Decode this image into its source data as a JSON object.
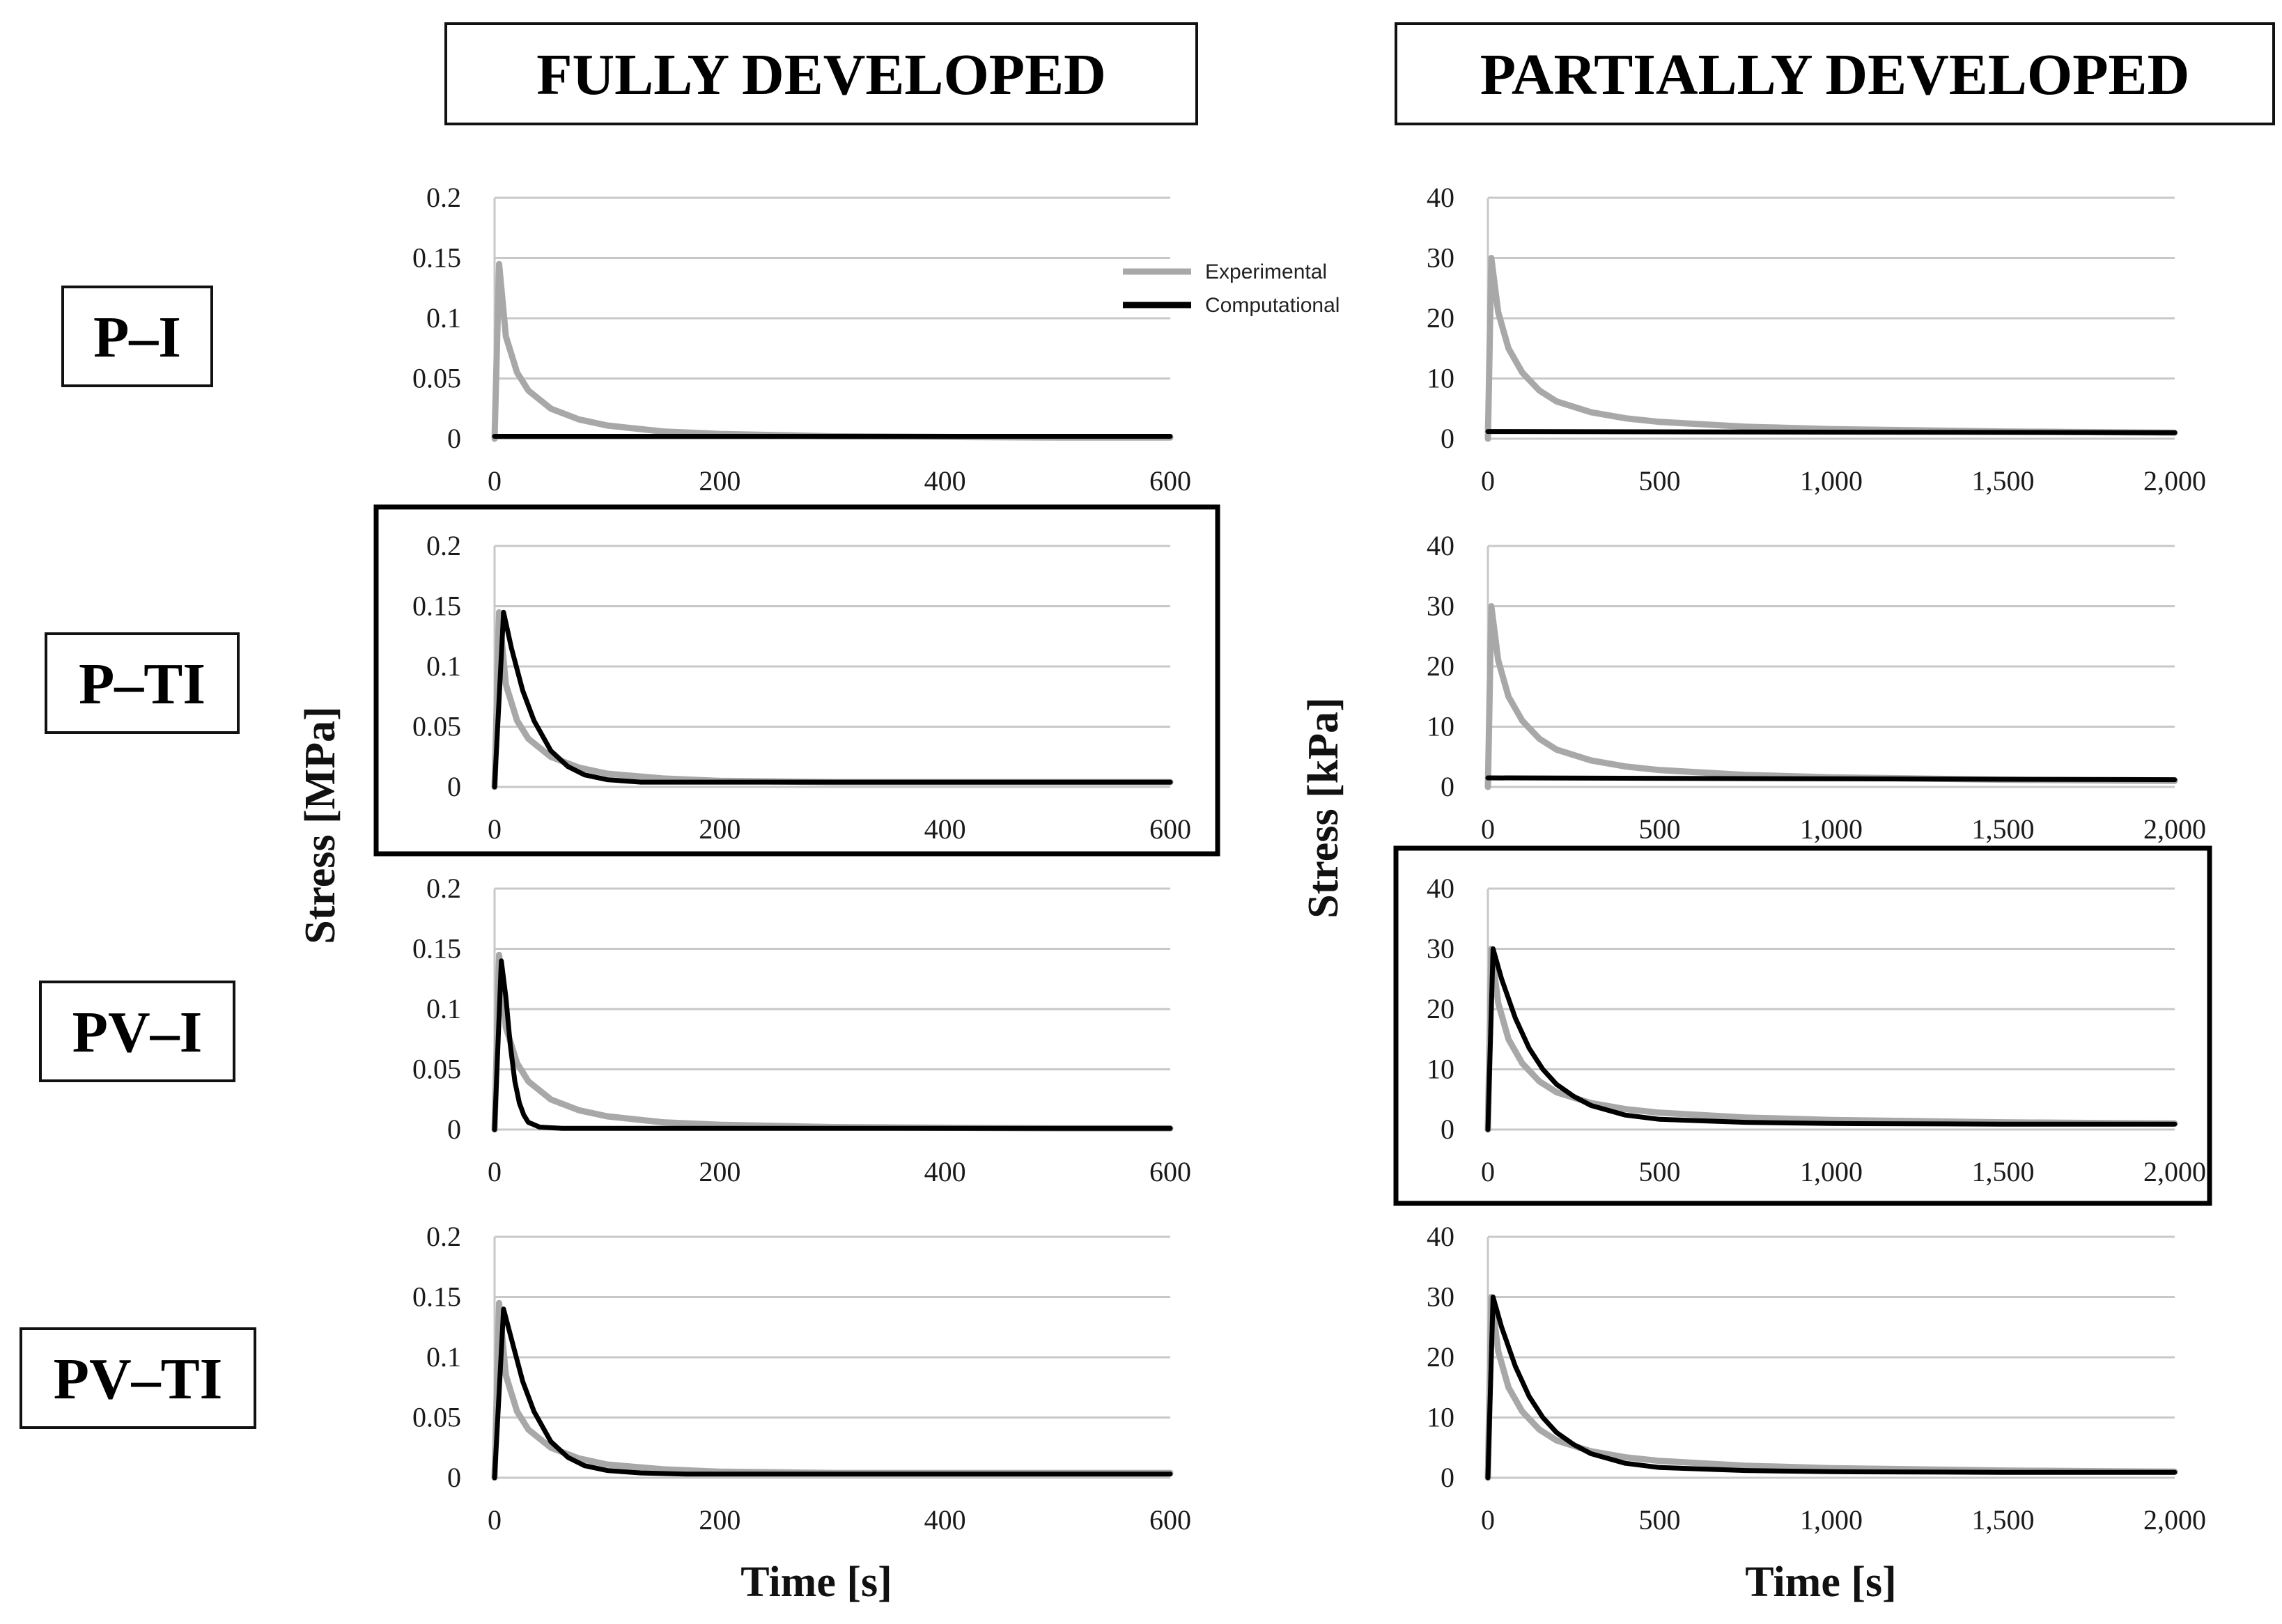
{
  "column_headers": [
    "FULLY DEVELOPED",
    "PARTIALLY DEVELOPED"
  ],
  "row_labels": [
    "P–I",
    "P–TI",
    "PV–I",
    "PV–TI"
  ],
  "axis_labels": {
    "y_left": "Stress [MPa]",
    "y_right": "Stress [kPa]",
    "x_left": "Time [s]",
    "x_right": "Time [s]"
  },
  "legend": {
    "experimental": "Experimental",
    "computational": "Computational"
  },
  "colors": {
    "experimental": "#a8a8a8",
    "computational": "#000000",
    "grid": "#c8c8c8"
  },
  "chart_data": [
    {
      "type": "line",
      "panel": "P-I fully developed",
      "xlabel": "Time [s]",
      "ylabel": "Stress [MPa]",
      "xlim": [
        0,
        600
      ],
      "ylim": [
        0,
        0.2
      ],
      "xticks": [
        0,
        200,
        400,
        600
      ],
      "xtick_labels": [
        "0",
        "200",
        "400",
        "600"
      ],
      "yticks": [
        0,
        0.05,
        0.1,
        0.15,
        0.2
      ],
      "ytick_labels": [
        "0",
        "0.05",
        "0.1",
        "0.15",
        "0.2"
      ],
      "highlighted": false,
      "show_legend": true,
      "series": [
        {
          "name": "Experimental",
          "x": [
            0,
            4,
            10,
            20,
            30,
            50,
            75,
            100,
            150,
            200,
            300,
            400,
            500,
            600
          ],
          "y": [
            0,
            0.145,
            0.085,
            0.055,
            0.04,
            0.025,
            0.016,
            0.011,
            0.006,
            0.004,
            0.002,
            0.0015,
            0.001,
            0.001
          ]
        },
        {
          "name": "Computational",
          "x": [
            0,
            600
          ],
          "y": [
            0.002,
            0.002
          ]
        }
      ]
    },
    {
      "type": "line",
      "panel": "P-I partially developed",
      "xlabel": "Time [s]",
      "ylabel": "Stress [kPa]",
      "xlim": [
        0,
        2000
      ],
      "ylim": [
        0,
        40
      ],
      "xticks": [
        0,
        500,
        1000,
        1500,
        2000
      ],
      "xtick_labels": [
        "0",
        "500",
        "1,000",
        "1,500",
        "2,000"
      ],
      "yticks": [
        0,
        10,
        20,
        30,
        40
      ],
      "ytick_labels": [
        "0",
        "10",
        "20",
        "30",
        "40"
      ],
      "highlighted": false,
      "show_legend": false,
      "series": [
        {
          "name": "Experimental",
          "x": [
            0,
            10,
            30,
            60,
            100,
            150,
            200,
            300,
            400,
            500,
            750,
            1000,
            1250,
            1500,
            1750,
            2000
          ],
          "y": [
            0,
            30,
            21,
            15,
            11,
            8,
            6.2,
            4.4,
            3.4,
            2.8,
            2.0,
            1.6,
            1.4,
            1.2,
            1.1,
            1.0
          ]
        },
        {
          "name": "Computational",
          "x": [
            0,
            2000
          ],
          "y": [
            1.2,
            1.0
          ]
        }
      ]
    },
    {
      "type": "line",
      "panel": "P-TI fully developed",
      "xlabel": "Time [s]",
      "ylabel": "Stress [MPa]",
      "xlim": [
        0,
        600
      ],
      "ylim": [
        0,
        0.2
      ],
      "xticks": [
        0,
        200,
        400,
        600
      ],
      "xtick_labels": [
        "0",
        "200",
        "400",
        "600"
      ],
      "yticks": [
        0,
        0.05,
        0.1,
        0.15,
        0.2
      ],
      "ytick_labels": [
        "0",
        "0.05",
        "0.1",
        "0.15",
        "0.2"
      ],
      "highlighted": true,
      "show_legend": false,
      "series": [
        {
          "name": "Experimental",
          "x": [
            0,
            4,
            10,
            20,
            30,
            50,
            75,
            100,
            150,
            200,
            300,
            400,
            500,
            600
          ],
          "y": [
            0,
            0.145,
            0.085,
            0.055,
            0.04,
            0.025,
            0.016,
            0.011,
            0.007,
            0.005,
            0.004,
            0.004,
            0.004,
            0.004
          ]
        },
        {
          "name": "Computational",
          "x": [
            0,
            8,
            15,
            25,
            35,
            50,
            65,
            80,
            100,
            130,
            170,
            200,
            300,
            400,
            500,
            600
          ],
          "y": [
            0,
            0.145,
            0.115,
            0.08,
            0.055,
            0.03,
            0.017,
            0.01,
            0.006,
            0.004,
            0.004,
            0.004,
            0.004,
            0.004,
            0.004,
            0.004
          ]
        }
      ]
    },
    {
      "type": "line",
      "panel": "P-TI partially developed",
      "xlabel": "Time [s]",
      "ylabel": "Stress [kPa]",
      "xlim": [
        0,
        2000
      ],
      "ylim": [
        0,
        40
      ],
      "xticks": [
        0,
        500,
        1000,
        1500,
        2000
      ],
      "xtick_labels": [
        "0",
        "500",
        "1,000",
        "1,500",
        "2,000"
      ],
      "yticks": [
        0,
        10,
        20,
        30,
        40
      ],
      "ytick_labels": [
        "0",
        "10",
        "20",
        "30",
        "40"
      ],
      "highlighted": false,
      "show_legend": false,
      "series": [
        {
          "name": "Experimental",
          "x": [
            0,
            10,
            30,
            60,
            100,
            150,
            200,
            300,
            400,
            500,
            750,
            1000,
            1250,
            1500,
            1750,
            2000
          ],
          "y": [
            0,
            30,
            21,
            15,
            11,
            8,
            6.2,
            4.4,
            3.4,
            2.8,
            2.0,
            1.6,
            1.4,
            1.2,
            1.1,
            1.0
          ]
        },
        {
          "name": "Computational",
          "x": [
            0,
            2000
          ],
          "y": [
            1.5,
            1.2
          ]
        }
      ]
    },
    {
      "type": "line",
      "panel": "PV-I fully developed",
      "xlabel": "Time [s]",
      "ylabel": "Stress [MPa]",
      "xlim": [
        0,
        600
      ],
      "ylim": [
        0,
        0.2
      ],
      "xticks": [
        0,
        200,
        400,
        600
      ],
      "xtick_labels": [
        "0",
        "200",
        "400",
        "600"
      ],
      "yticks": [
        0,
        0.05,
        0.1,
        0.15,
        0.2
      ],
      "ytick_labels": [
        "0",
        "0.05",
        "0.1",
        "0.15",
        "0.2"
      ],
      "highlighted": false,
      "show_legend": false,
      "series": [
        {
          "name": "Experimental",
          "x": [
            0,
            4,
            10,
            20,
            30,
            50,
            75,
            100,
            150,
            200,
            300,
            400,
            500,
            600
          ],
          "y": [
            0,
            0.145,
            0.085,
            0.055,
            0.04,
            0.025,
            0.016,
            0.011,
            0.006,
            0.004,
            0.002,
            0.0015,
            0.001,
            0.001
          ]
        },
        {
          "name": "Computational",
          "x": [
            0,
            6,
            10,
            14,
            18,
            22,
            26,
            30,
            40,
            60,
            600
          ],
          "y": [
            0,
            0.14,
            0.11,
            0.07,
            0.04,
            0.022,
            0.012,
            0.006,
            0.002,
            0.001,
            0.001
          ]
        }
      ]
    },
    {
      "type": "line",
      "panel": "PV-I partially developed",
      "xlabel": "Time [s]",
      "ylabel": "Stress [kPa]",
      "xlim": [
        0,
        2000
      ],
      "ylim": [
        0,
        40
      ],
      "xticks": [
        0,
        500,
        1000,
        1500,
        2000
      ],
      "xtick_labels": [
        "0",
        "500",
        "1,000",
        "1,500",
        "2,000"
      ],
      "yticks": [
        0,
        10,
        20,
        30,
        40
      ],
      "ytick_labels": [
        "0",
        "10",
        "20",
        "30",
        "40"
      ],
      "highlighted": true,
      "show_legend": false,
      "series": [
        {
          "name": "Experimental",
          "x": [
            0,
            10,
            30,
            60,
            100,
            150,
            200,
            300,
            400,
            500,
            750,
            1000,
            1250,
            1500,
            1750,
            2000
          ],
          "y": [
            0,
            30,
            21,
            15,
            11,
            8,
            6.2,
            4.4,
            3.4,
            2.8,
            2.0,
            1.6,
            1.4,
            1.2,
            1.1,
            1.0
          ]
        },
        {
          "name": "Computational",
          "x": [
            0,
            15,
            40,
            80,
            120,
            160,
            200,
            250,
            300,
            400,
            500,
            750,
            1000,
            1500,
            2000
          ],
          "y": [
            0,
            30,
            25,
            18.5,
            13.5,
            10,
            7.5,
            5.5,
            4.0,
            2.4,
            1.7,
            1.2,
            1.0,
            0.9,
            0.9
          ]
        }
      ]
    },
    {
      "type": "line",
      "panel": "PV-TI fully developed",
      "xlabel": "Time [s]",
      "ylabel": "Stress [MPa]",
      "xlim": [
        0,
        600
      ],
      "ylim": [
        0,
        0.2
      ],
      "xticks": [
        0,
        200,
        400,
        600
      ],
      "xtick_labels": [
        "0",
        "200",
        "400",
        "600"
      ],
      "yticks": [
        0,
        0.05,
        0.1,
        0.15,
        0.2
      ],
      "ytick_labels": [
        "0",
        "0.05",
        "0.1",
        "0.15",
        "0.2"
      ],
      "highlighted": false,
      "show_legend": false,
      "series": [
        {
          "name": "Experimental",
          "x": [
            0,
            4,
            10,
            20,
            30,
            50,
            75,
            100,
            150,
            200,
            300,
            400,
            500,
            600
          ],
          "y": [
            0,
            0.145,
            0.085,
            0.055,
            0.04,
            0.025,
            0.016,
            0.011,
            0.007,
            0.005,
            0.004,
            0.004,
            0.004,
            0.004
          ]
        },
        {
          "name": "Computational",
          "x": [
            0,
            8,
            15,
            25,
            35,
            50,
            65,
            80,
            100,
            130,
            170,
            200,
            300,
            400,
            500,
            600
          ],
          "y": [
            0,
            0.14,
            0.115,
            0.08,
            0.055,
            0.03,
            0.017,
            0.01,
            0.006,
            0.004,
            0.003,
            0.003,
            0.003,
            0.003,
            0.003,
            0.003
          ]
        }
      ]
    },
    {
      "type": "line",
      "panel": "PV-TI partially developed",
      "xlabel": "Time [s]",
      "ylabel": "Stress [kPa]",
      "xlim": [
        0,
        2000
      ],
      "ylim": [
        0,
        40
      ],
      "xticks": [
        0,
        500,
        1000,
        1500,
        2000
      ],
      "xtick_labels": [
        "0",
        "500",
        "1,000",
        "1,500",
        "2,000"
      ],
      "yticks": [
        0,
        10,
        20,
        30,
        40
      ],
      "ytick_labels": [
        "0",
        "10",
        "20",
        "30",
        "40"
      ],
      "highlighted": false,
      "show_legend": false,
      "series": [
        {
          "name": "Experimental",
          "x": [
            0,
            10,
            30,
            60,
            100,
            150,
            200,
            300,
            400,
            500,
            750,
            1000,
            1250,
            1500,
            1750,
            2000
          ],
          "y": [
            0,
            30,
            21,
            15,
            11,
            8,
            6.2,
            4.4,
            3.4,
            2.8,
            2.0,
            1.6,
            1.4,
            1.2,
            1.1,
            1.0
          ]
        },
        {
          "name": "Computational",
          "x": [
            0,
            15,
            40,
            80,
            120,
            160,
            200,
            250,
            300,
            400,
            500,
            750,
            1000,
            1500,
            2000
          ],
          "y": [
            0,
            30,
            25,
            18.5,
            13.5,
            10,
            7.5,
            5.5,
            4.0,
            2.4,
            1.7,
            1.2,
            1.0,
            0.9,
            0.9
          ]
        }
      ]
    }
  ]
}
